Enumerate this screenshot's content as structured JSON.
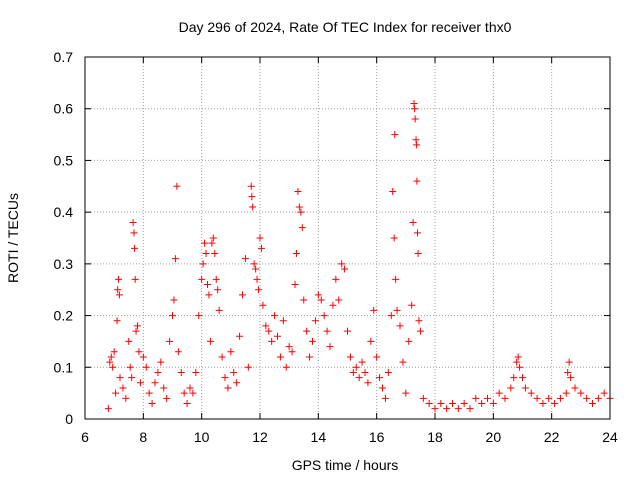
{
  "chart_data": {
    "type": "scatter",
    "title": "Day 296 of 2024, Rate Of TEC Index for receiver thx0",
    "xlabel": "GPS time / hours",
    "ylabel": "ROTI / TECUs",
    "xlim": [
      6,
      24
    ],
    "ylim": [
      0,
      0.7
    ],
    "xticks": [
      6,
      8,
      10,
      12,
      14,
      16,
      18,
      20,
      22,
      24
    ],
    "yticks": [
      0,
      0.1,
      0.2,
      0.3,
      0.4,
      0.5,
      0.6,
      0.7
    ],
    "xtick_labels": [
      "6",
      "8",
      "10",
      "12",
      "14",
      "16",
      "18",
      "20",
      "22",
      "24"
    ],
    "ytick_labels": [
      "0",
      "0.1",
      "0.2",
      "0.3",
      "0.4",
      "0.5",
      "0.6",
      "0.7"
    ],
    "grid": true,
    "marker": "+",
    "marker_color": "#ff0000",
    "series": [
      {
        "name": "thx0",
        "points": [
          [
            6.8,
            0.02
          ],
          [
            6.85,
            0.11
          ],
          [
            6.9,
            0.12
          ],
          [
            6.95,
            0.1
          ],
          [
            7.0,
            0.13
          ],
          [
            7.05,
            0.05
          ],
          [
            7.1,
            0.19
          ],
          [
            7.12,
            0.25
          ],
          [
            7.15,
            0.27
          ],
          [
            7.18,
            0.24
          ],
          [
            7.2,
            0.08
          ],
          [
            7.3,
            0.06
          ],
          [
            7.4,
            0.04
          ],
          [
            7.5,
            0.15
          ],
          [
            7.55,
            0.1
          ],
          [
            7.6,
            0.08
          ],
          [
            7.65,
            0.38
          ],
          [
            7.68,
            0.36
          ],
          [
            7.7,
            0.33
          ],
          [
            7.72,
            0.27
          ],
          [
            7.75,
            0.17
          ],
          [
            7.8,
            0.18
          ],
          [
            7.85,
            0.13
          ],
          [
            7.9,
            0.07
          ],
          [
            8.0,
            0.12
          ],
          [
            8.1,
            0.1
          ],
          [
            8.2,
            0.05
          ],
          [
            8.3,
            0.03
          ],
          [
            8.4,
            0.07
          ],
          [
            8.5,
            0.09
          ],
          [
            8.6,
            0.11
          ],
          [
            8.7,
            0.06
          ],
          [
            8.8,
            0.04
          ],
          [
            8.9,
            0.15
          ],
          [
            9.0,
            0.2
          ],
          [
            9.05,
            0.23
          ],
          [
            9.1,
            0.31
          ],
          [
            9.15,
            0.45
          ],
          [
            9.2,
            0.13
          ],
          [
            9.3,
            0.09
          ],
          [
            9.4,
            0.05
          ],
          [
            9.5,
            0.03
          ],
          [
            9.6,
            0.06
          ],
          [
            9.7,
            0.05
          ],
          [
            9.8,
            0.09
          ],
          [
            9.9,
            0.2
          ],
          [
            10.0,
            0.27
          ],
          [
            10.05,
            0.3
          ],
          [
            10.1,
            0.34
          ],
          [
            10.15,
            0.32
          ],
          [
            10.2,
            0.26
          ],
          [
            10.25,
            0.24
          ],
          [
            10.3,
            0.15
          ],
          [
            10.35,
            0.34
          ],
          [
            10.4,
            0.35
          ],
          [
            10.45,
            0.32
          ],
          [
            10.5,
            0.27
          ],
          [
            10.55,
            0.25
          ],
          [
            10.6,
            0.21
          ],
          [
            10.7,
            0.12
          ],
          [
            10.8,
            0.08
          ],
          [
            10.9,
            0.06
          ],
          [
            11.0,
            0.13
          ],
          [
            11.1,
            0.09
          ],
          [
            11.2,
            0.07
          ],
          [
            11.3,
            0.16
          ],
          [
            11.4,
            0.24
          ],
          [
            11.5,
            0.31
          ],
          [
            11.6,
            0.1
          ],
          [
            11.7,
            0.45
          ],
          [
            11.72,
            0.43
          ],
          [
            11.75,
            0.41
          ],
          [
            11.8,
            0.3
          ],
          [
            11.85,
            0.29
          ],
          [
            11.9,
            0.27
          ],
          [
            11.95,
            0.25
          ],
          [
            12.0,
            0.35
          ],
          [
            12.05,
            0.33
          ],
          [
            12.1,
            0.22
          ],
          [
            12.2,
            0.18
          ],
          [
            12.3,
            0.17
          ],
          [
            12.4,
            0.15
          ],
          [
            12.5,
            0.2
          ],
          [
            12.6,
            0.16
          ],
          [
            12.7,
            0.12
          ],
          [
            12.8,
            0.19
          ],
          [
            12.9,
            0.1
          ],
          [
            13.0,
            0.14
          ],
          [
            13.1,
            0.13
          ],
          [
            13.2,
            0.26
          ],
          [
            13.25,
            0.32
          ],
          [
            13.3,
            0.44
          ],
          [
            13.35,
            0.41
          ],
          [
            13.4,
            0.4
          ],
          [
            13.45,
            0.37
          ],
          [
            13.5,
            0.23
          ],
          [
            13.6,
            0.17
          ],
          [
            13.7,
            0.12
          ],
          [
            13.8,
            0.15
          ],
          [
            13.9,
            0.19
          ],
          [
            14.0,
            0.24
          ],
          [
            14.1,
            0.23
          ],
          [
            14.2,
            0.2
          ],
          [
            14.3,
            0.17
          ],
          [
            14.4,
            0.14
          ],
          [
            14.5,
            0.22
          ],
          [
            14.6,
            0.27
          ],
          [
            14.7,
            0.23
          ],
          [
            14.8,
            0.3
          ],
          [
            14.9,
            0.29
          ],
          [
            15.0,
            0.17
          ],
          [
            15.1,
            0.12
          ],
          [
            15.2,
            0.09
          ],
          [
            15.3,
            0.1
          ],
          [
            15.4,
            0.08
          ],
          [
            15.5,
            0.11
          ],
          [
            15.6,
            0.09
          ],
          [
            15.7,
            0.07
          ],
          [
            15.8,
            0.15
          ],
          [
            15.9,
            0.21
          ],
          [
            16.0,
            0.12
          ],
          [
            16.1,
            0.08
          ],
          [
            16.2,
            0.06
          ],
          [
            16.3,
            0.04
          ],
          [
            16.4,
            0.09
          ],
          [
            16.5,
            0.2
          ],
          [
            16.55,
            0.44
          ],
          [
            16.6,
            0.35
          ],
          [
            16.62,
            0.55
          ],
          [
            16.65,
            0.27
          ],
          [
            16.7,
            0.21
          ],
          [
            16.8,
            0.18
          ],
          [
            16.9,
            0.11
          ],
          [
            17.0,
            0.05
          ],
          [
            17.1,
            0.15
          ],
          [
            17.2,
            0.22
          ],
          [
            17.25,
            0.38
          ],
          [
            17.28,
            0.61
          ],
          [
            17.3,
            0.6
          ],
          [
            17.32,
            0.58
          ],
          [
            17.35,
            0.54
          ],
          [
            17.37,
            0.53
          ],
          [
            17.38,
            0.46
          ],
          [
            17.4,
            0.36
          ],
          [
            17.42,
            0.32
          ],
          [
            17.45,
            0.19
          ],
          [
            17.5,
            0.17
          ],
          [
            17.6,
            0.04
          ],
          [
            17.8,
            0.03
          ],
          [
            18.0,
            0.02
          ],
          [
            18.2,
            0.03
          ],
          [
            18.4,
            0.02
          ],
          [
            18.6,
            0.03
          ],
          [
            18.8,
            0.02
          ],
          [
            19.0,
            0.03
          ],
          [
            19.2,
            0.02
          ],
          [
            19.4,
            0.04
          ],
          [
            19.6,
            0.03
          ],
          [
            19.8,
            0.04
          ],
          [
            20.0,
            0.03
          ],
          [
            20.2,
            0.05
          ],
          [
            20.4,
            0.04
          ],
          [
            20.6,
            0.06
          ],
          [
            20.7,
            0.08
          ],
          [
            20.8,
            0.11
          ],
          [
            20.85,
            0.12
          ],
          [
            20.9,
            0.1
          ],
          [
            21.0,
            0.08
          ],
          [
            21.1,
            0.06
          ],
          [
            21.3,
            0.05
          ],
          [
            21.5,
            0.04
          ],
          [
            21.7,
            0.03
          ],
          [
            21.9,
            0.04
          ],
          [
            22.1,
            0.03
          ],
          [
            22.3,
            0.04
          ],
          [
            22.5,
            0.05
          ],
          [
            22.55,
            0.09
          ],
          [
            22.6,
            0.11
          ],
          [
            22.65,
            0.08
          ],
          [
            22.8,
            0.06
          ],
          [
            23.0,
            0.05
          ],
          [
            23.2,
            0.04
          ],
          [
            23.4,
            0.03
          ],
          [
            23.6,
            0.04
          ],
          [
            23.8,
            0.05
          ],
          [
            24.0,
            0.04
          ]
        ]
      }
    ]
  }
}
